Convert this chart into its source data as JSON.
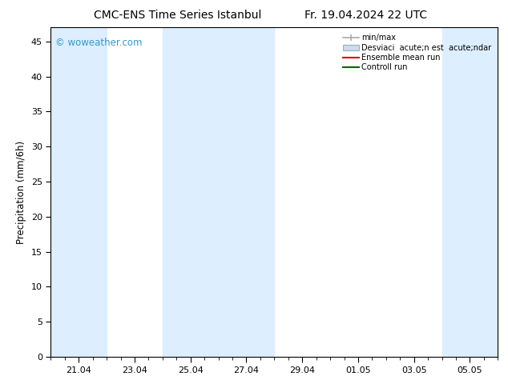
{
  "title_left": "CMC-ENS Time Series Istanbul",
  "title_right": "Fr. 19.04.2024 22 UTC",
  "ylabel": "Precipitation (mm/6h)",
  "watermark": "© woweather.com",
  "watermark_color": "#3399cc",
  "background_color": "#ffffff",
  "plot_bg_color": "#ffffff",
  "ylim": [
    0,
    47
  ],
  "yticks": [
    0,
    5,
    10,
    15,
    20,
    25,
    30,
    35,
    40,
    45
  ],
  "x_min": 0.0,
  "x_max": 16.0,
  "xtick_labels": [
    "21.04",
    "23.04",
    "25.04",
    "27.04",
    "29.04",
    "01.05",
    "03.05",
    "05.05"
  ],
  "xtick_positions": [
    1.0,
    3.0,
    5.0,
    7.0,
    9.0,
    11.0,
    13.0,
    15.0
  ],
  "shaded_bands": [
    {
      "x_start": 0.0,
      "x_end": 2.0
    },
    {
      "x_start": 4.0,
      "x_end": 6.0
    },
    {
      "x_start": 6.0,
      "x_end": 8.0
    },
    {
      "x_start": 14.0,
      "x_end": 16.0
    }
  ],
  "shaded_color": "#ddeeff",
  "shaded_alpha": 1.0,
  "legend_min_max_color": "#aaaaaa",
  "legend_band_color": "#ccdcee",
  "legend_band_edge_color": "#9aacbe",
  "legend_ensemble_color": "#dd0000",
  "legend_control_color": "#006600",
  "font_size_title": 10,
  "font_size_legend": 7,
  "font_size_ticks": 8,
  "font_size_ylabel": 8.5,
  "font_size_watermark": 8.5
}
